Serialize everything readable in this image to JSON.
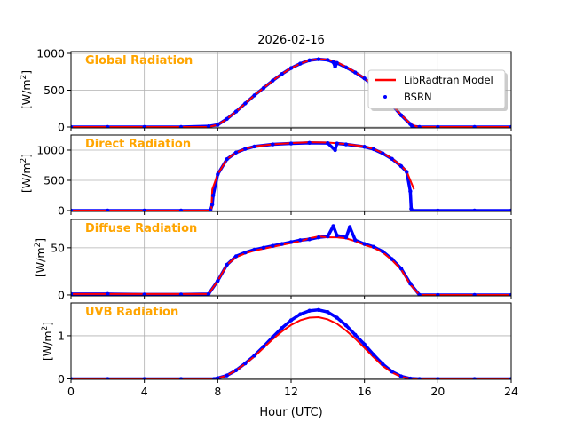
{
  "chart_data": {
    "type": "line",
    "title": "2026-02-16",
    "xlabel": "Hour (UTC)",
    "xlim": [
      0,
      24
    ],
    "xticks": [
      "0",
      "4",
      "8",
      "12",
      "16",
      "20",
      "24"
    ],
    "grid": true,
    "legend": {
      "placement": "upper-right of top panel",
      "entries": [
        "LibRadtran Model",
        "BSRN"
      ]
    },
    "colors": {
      "model": "#ff0000",
      "bsrn": "#0000ff",
      "panel_title": "#ffa500"
    },
    "panels": [
      {
        "title": "Global Radiation",
        "ylabel": "[W/m2]",
        "ylim": [
          -12,
          1024
        ],
        "yticks": [
          "0",
          "500",
          "1000"
        ],
        "ytick_values": [
          0,
          500,
          1000
        ],
        "model": {
          "x": [
            0,
            7.5,
            8,
            8.5,
            9,
            9.5,
            10,
            10.5,
            11,
            11.5,
            12,
            12.5,
            13,
            13.5,
            14,
            14.5,
            15,
            15.5,
            16,
            16.5,
            17,
            17.5,
            18,
            18.5,
            18.8,
            19,
            24
          ],
          "y": [
            0,
            0,
            30,
            110,
            210,
            320,
            430,
            530,
            630,
            720,
            800,
            860,
            905,
            920,
            915,
            880,
            815,
            745,
            665,
            565,
            445,
            305,
            165,
            45,
            10,
            0,
            0
          ]
        },
        "bsrn": {
          "x": [
            0,
            2,
            4,
            6,
            7.5,
            8,
            8.5,
            9,
            9.5,
            10,
            10.5,
            11,
            11.5,
            12,
            12.5,
            13,
            13.5,
            14,
            14.3,
            14.4,
            14.5,
            15,
            15.5,
            16,
            16.5,
            17,
            17.5,
            18,
            18.5,
            18.6,
            19,
            20,
            22,
            24
          ],
          "y": [
            0,
            0,
            0,
            0,
            10,
            30,
            110,
            210,
            320,
            430,
            530,
            630,
            720,
            800,
            860,
            905,
            920,
            910,
            880,
            820,
            870,
            810,
            740,
            660,
            560,
            440,
            300,
            160,
            40,
            10,
            0,
            0,
            0,
            0
          ]
        }
      },
      {
        "title": "Direct Radiation",
        "ylabel": "[W/m2]",
        "ylim": [
          -15,
          1250
        ],
        "yticks": [
          "0",
          "500",
          "1000"
        ],
        "ytick_values": [
          0,
          500,
          1000
        ],
        "model": {
          "x": [
            0,
            7.65,
            7.7,
            8,
            8.5,
            9,
            9.5,
            10,
            11,
            12,
            13,
            14,
            15,
            16,
            16.5,
            17,
            17.5,
            18,
            18.3,
            18.7
          ],
          "y": [
            0,
            0,
            350,
            600,
            850,
            960,
            1020,
            1060,
            1095,
            1115,
            1130,
            1125,
            1100,
            1060,
            1020,
            950,
            860,
            740,
            650,
            350
          ]
        },
        "bsrn": {
          "x": [
            0,
            2,
            4,
            6,
            7.6,
            7.7,
            7.75,
            8,
            8.5,
            9,
            9.5,
            10,
            11,
            12,
            13,
            14,
            14.4,
            14.5,
            15,
            16,
            16.5,
            17,
            17.5,
            18,
            18.3,
            18.5,
            18.55,
            18.6,
            20,
            22,
            24
          ],
          "y": [
            0,
            0,
            0,
            0,
            0,
            100,
            250,
            600,
            850,
            960,
            1020,
            1060,
            1095,
            1110,
            1120,
            1115,
            1000,
            1110,
            1095,
            1055,
            1015,
            945,
            855,
            735,
            640,
            320,
            30,
            0,
            0,
            0,
            0
          ]
        }
      },
      {
        "title": "Diffuse Radiation",
        "ylabel": "[W/m2]",
        "ylim": [
          -1,
          80
        ],
        "yticks": [
          "0",
          "50"
        ],
        "ytick_values": [
          0,
          50
        ],
        "model": {
          "x": [
            0,
            7.5,
            8,
            8.5,
            9,
            9.5,
            10,
            10.5,
            11,
            11.5,
            12,
            12.5,
            13,
            13.5,
            14,
            14.5,
            15,
            15.5,
            16,
            16.5,
            17,
            17.5,
            18,
            18.5,
            19,
            24
          ],
          "y": [
            1,
            1,
            15,
            32,
            40,
            44,
            47,
            49,
            51,
            53,
            55,
            57,
            60,
            62,
            61,
            61,
            60,
            57,
            53,
            50,
            45,
            37,
            27,
            11,
            0,
            0
          ]
        },
        "bsrn": {
          "x": [
            0,
            2,
            4,
            6,
            7.5,
            8,
            8.5,
            9,
            9.5,
            10,
            10.5,
            11,
            11.5,
            12,
            12.5,
            13,
            13.5,
            14,
            14.3,
            14.5,
            15,
            15.2,
            15.5,
            16,
            16.5,
            17,
            17.5,
            18,
            18.5,
            19,
            20,
            22,
            24
          ],
          "y": [
            1,
            1,
            0.5,
            0.5,
            1,
            15,
            32,
            41,
            45,
            48,
            50,
            52,
            54,
            56,
            58,
            59,
            61,
            62,
            73,
            63,
            61,
            72,
            58,
            54,
            51,
            46,
            38,
            28,
            12,
            0,
            0,
            0,
            0
          ]
        }
      },
      {
        "title": "UVB Radiation",
        "ylabel": "[W/m2]",
        "ylim": [
          -0.01,
          1.76
        ],
        "yticks": [
          "0",
          "1"
        ],
        "ytick_values": [
          0,
          1
        ],
        "model": {
          "x": [
            0,
            7.8,
            8,
            8.5,
            9,
            9.5,
            10,
            10.5,
            11,
            11.5,
            12,
            12.5,
            13,
            13.5,
            14,
            14.5,
            15,
            15.5,
            16,
            16.5,
            17,
            17.5,
            18,
            18.5,
            19,
            24
          ],
          "y": [
            0,
            0,
            0.02,
            0.08,
            0.2,
            0.35,
            0.52,
            0.72,
            0.92,
            1.1,
            1.25,
            1.36,
            1.42,
            1.43,
            1.38,
            1.28,
            1.12,
            0.93,
            0.72,
            0.5,
            0.3,
            0.15,
            0.05,
            0.01,
            0,
            0
          ]
        },
        "bsrn": {
          "x": [
            0,
            2,
            4,
            6,
            7.8,
            8,
            8.5,
            9,
            9.5,
            10,
            10.5,
            11,
            11.5,
            12,
            12.5,
            13,
            13.5,
            14,
            14.5,
            15,
            15.5,
            16,
            16.5,
            17,
            17.5,
            18,
            18.5,
            19,
            20,
            22,
            24
          ],
          "y": [
            0,
            0,
            0,
            0,
            0,
            0.02,
            0.08,
            0.2,
            0.36,
            0.54,
            0.75,
            0.97,
            1.18,
            1.36,
            1.5,
            1.58,
            1.6,
            1.55,
            1.42,
            1.24,
            1.02,
            0.8,
            0.56,
            0.34,
            0.17,
            0.06,
            0.01,
            0,
            0,
            0,
            0
          ]
        }
      }
    ]
  }
}
